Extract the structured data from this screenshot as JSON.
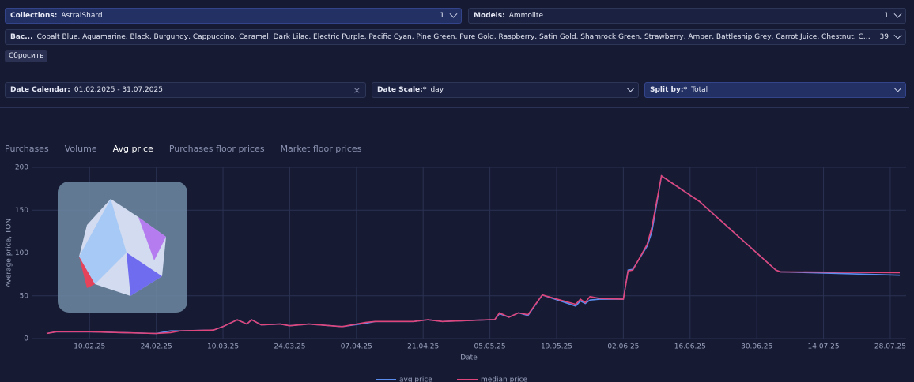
{
  "filters": [
    {
      "label": "Collections:",
      "value": "AstralShard",
      "count": "1"
    },
    {
      "label": "Models:",
      "value": "Ammolite",
      "count": "1"
    },
    {
      "label": "Bac...",
      "value": "Cobalt Blue, Aquamarine, Black, Burgundy, Cappuccino, Caramel, Dark Lilac, Electric Purple, Pacific Cyan, Pine Green, Pure Gold, Raspberry, Satin Gold, Shamrock Green, Strawberry, Amber, Battleship Grey, Carrot Juice, Chestnut, Copper, Coral Red, Desert...",
      "count": "39"
    }
  ],
  "reset_button": "Сбросить",
  "date_calendar": {
    "label": "Date Calendar:",
    "value": "01.02.2025 - 31.07.2025"
  },
  "date_scale": {
    "label": "Date Scale:*",
    "value": "day"
  },
  "split_by": {
    "label": "Split by:*",
    "value": "Total"
  },
  "tabs": [
    "Purchases",
    "Volume",
    "Avg price",
    "Purchases floor prices",
    "Market floor prices"
  ],
  "active_tab": 2,
  "chart": {
    "type": "line",
    "y_label": "Average price, TON",
    "x_label": "Date",
    "ylim": [
      0,
      200
    ],
    "yticks": [
      0,
      50,
      100,
      150,
      200
    ],
    "xticks": [
      "10.02.25",
      "24.02.25",
      "10.03.25",
      "24.03.25",
      "07.04.25",
      "21.04.25",
      "05.05.25",
      "19.05.25",
      "02.06.25",
      "16.06.25",
      "30.06.25",
      "14.07.25",
      "28.07.25"
    ],
    "x": [
      "01.02.25",
      "03.02.25",
      "10.02.25",
      "17.02.25",
      "24.02.25",
      "27.02.25",
      "01.03.25",
      "08.03.25",
      "10.03.25",
      "13.03.25",
      "15.03.25",
      "16.03.25",
      "18.03.25",
      "22.03.25",
      "24.03.25",
      "28.03.25",
      "04.04.25",
      "09.04.25",
      "11.04.25",
      "19.04.25",
      "22.04.25",
      "25.04.25",
      "30.04.25",
      "05.05.25",
      "06.05.25",
      "07.05.25",
      "09.05.25",
      "11.05.25",
      "13.05.25",
      "16.05.25",
      "23.05.25",
      "24.05.25",
      "25.05.25",
      "26.05.25",
      "28.05.25",
      "02.06.25",
      "03.06.25",
      "04.06.25",
      "07.06.25",
      "08.06.25",
      "10.06.25",
      "18.06.25",
      "04.07.25",
      "05.07.25",
      "30.07.25"
    ],
    "series": [
      {
        "name": "avg price",
        "color": "#5b8def",
        "values": [
          6,
          8,
          8,
          7,
          6,
          9,
          9,
          10,
          14,
          22,
          17,
          22,
          16,
          17,
          15,
          17,
          14,
          18,
          20,
          20,
          22,
          20,
          21,
          22,
          22,
          29,
          25,
          30,
          27,
          51,
          38,
          44,
          41,
          45,
          46,
          46,
          80,
          81,
          108,
          125,
          190,
          160,
          80,
          78,
          74
        ]
      },
      {
        "name": "median price",
        "color": "#e0457b",
        "values": [
          6,
          8,
          8,
          7,
          6,
          7,
          9,
          10,
          14,
          22,
          17,
          22,
          16,
          17,
          15,
          17,
          14,
          19,
          20,
          20,
          22,
          20,
          21,
          22,
          22,
          30,
          25,
          30,
          28,
          51,
          40,
          46,
          42,
          49,
          47,
          46,
          79,
          80,
          110,
          130,
          190,
          160,
          80,
          78,
          77
        ]
      }
    ]
  }
}
